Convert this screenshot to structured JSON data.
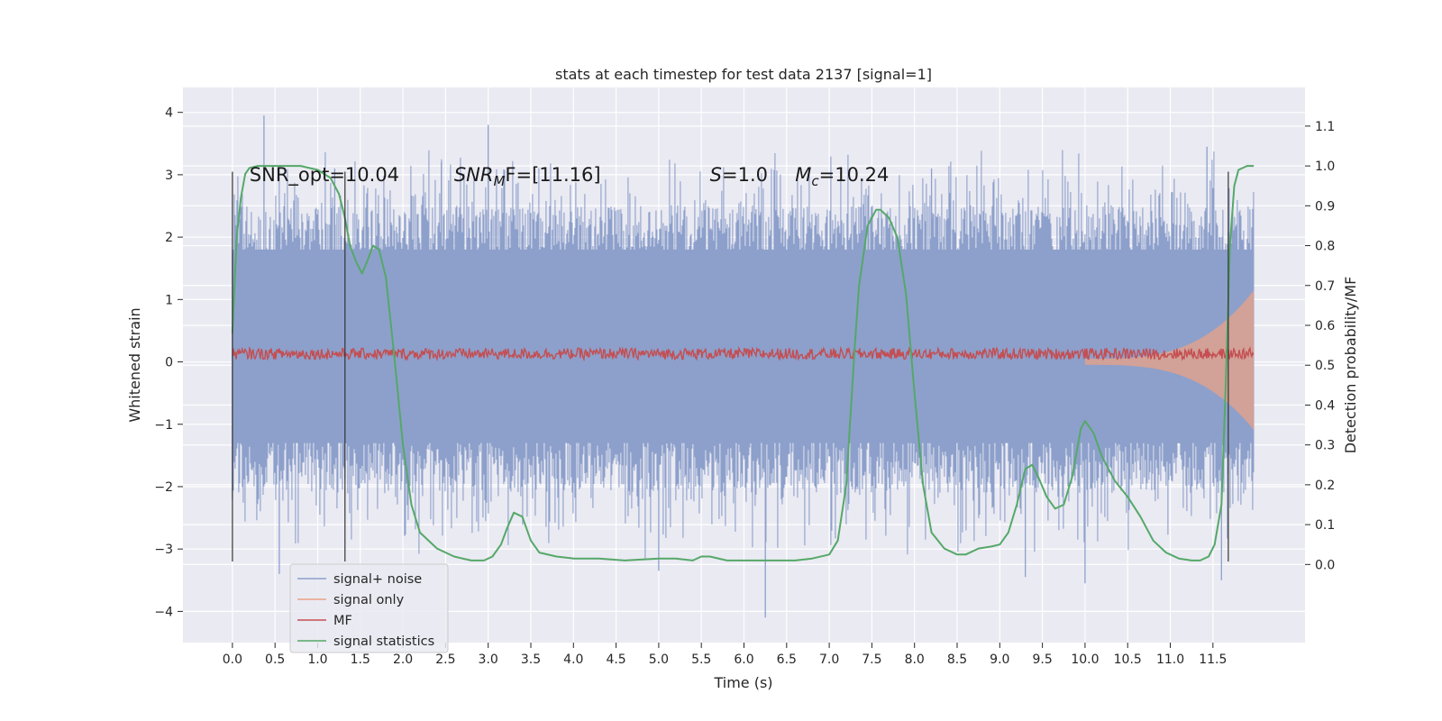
{
  "chart_data": {
    "type": "line",
    "title": "stats at each timestep for test data 2137 [signal=1]",
    "xlabel": "Time (s)",
    "ylabel": "Whitened strain",
    "y2label": "Detection probability/MF",
    "xlim": [
      -0.58,
      12.58
    ],
    "ylim": [
      -4.5,
      4.4
    ],
    "y2lim": [
      -0.196,
      1.197
    ],
    "x_ticks": [
      "0.0",
      "0.5",
      "1.0",
      "1.5",
      "2.0",
      "2.5",
      "3.0",
      "3.5",
      "4.0",
      "4.5",
      "5.0",
      "5.5",
      "6.0",
      "6.5",
      "7.0",
      "7.5",
      "8.0",
      "8.5",
      "9.0",
      "9.5",
      "10.0",
      "10.5",
      "11.0",
      "11.5"
    ],
    "x_tick_values": [
      0,
      0.5,
      1,
      1.5,
      2,
      2.5,
      3,
      3.5,
      4,
      4.5,
      5,
      5.5,
      6,
      6.5,
      7,
      7.5,
      8,
      8.5,
      9,
      9.5,
      10,
      10.5,
      11,
      11.5
    ],
    "y_ticks": [
      "−4",
      "−3",
      "−2",
      "−1",
      "0",
      "1",
      "2",
      "3",
      "4"
    ],
    "y_tick_values": [
      -4,
      -3,
      -2,
      -1,
      0,
      1,
      2,
      3,
      4
    ],
    "y2_ticks": [
      "0.0",
      "0.1",
      "0.2",
      "0.3",
      "0.4",
      "0.5",
      "0.6",
      "0.7",
      "0.8",
      "0.9",
      "1.0",
      "1.1"
    ],
    "y2_tick_values": [
      0,
      0.1,
      0.2,
      0.3,
      0.4,
      0.5,
      0.6,
      0.7,
      0.8,
      0.9,
      1.0,
      1.1
    ],
    "grid": true,
    "legend_position": "lower-left",
    "annotations": [
      {
        "text": "SNR_opt=10.04",
        "x": 0.2,
        "y": 3.0
      },
      {
        "text_parts": [
          [
            "SNR",
            "italic"
          ],
          [
            "M",
            "italic-sub"
          ],
          [
            "F=[11.16]",
            "normal"
          ]
        ],
        "x": 2.6,
        "y": 3.0
      },
      {
        "text_parts": [
          [
            "S",
            "italic"
          ],
          [
            "=1.0",
            "normal"
          ]
        ],
        "x": 5.6,
        "y": 3.0
      },
      {
        "text_parts": [
          [
            "M",
            "italic"
          ],
          [
            "c",
            "italic-sub"
          ],
          [
            "=10.24",
            "normal"
          ]
        ],
        "x": 6.6,
        "y": 3.0
      }
    ],
    "vlines": [
      {
        "x": 0.0,
        "y_range": [
          -3.2,
          3.05
        ]
      },
      {
        "x": 1.32,
        "y_range": [
          -3.2,
          3.05
        ]
      },
      {
        "x": 11.68,
        "y_range": [
          -3.2,
          3.05
        ]
      }
    ],
    "series": [
      {
        "name": "signal+ noise",
        "color": "#8da0cb",
        "axis": "left",
        "x_range": [
          0,
          11.98
        ],
        "envelope_core": [
          -1.3,
          1.8
        ],
        "peak_max": 3.95,
        "peak_min": -4.1
      },
      {
        "name": "signal only",
        "color": "#e9a185",
        "axis": "left",
        "x_range": [
          10.0,
          11.98
        ],
        "chirp_amplitude_end": 1.1
      },
      {
        "name": "MF",
        "color": "#c44e52",
        "axis": "left",
        "x_range": [
          0,
          11.98
        ],
        "baseline": 0.13,
        "noise_amp": 0.09
      },
      {
        "name": "signal statistics",
        "color": "#55a868",
        "axis": "right",
        "x": [
          0.0,
          0.05,
          0.1,
          0.15,
          0.2,
          0.3,
          0.5,
          0.8,
          1.0,
          1.15,
          1.25,
          1.32,
          1.38,
          1.45,
          1.52,
          1.58,
          1.65,
          1.72,
          1.8,
          1.9,
          2.0,
          2.1,
          2.2,
          2.4,
          2.6,
          2.8,
          2.95,
          3.05,
          3.15,
          3.22,
          3.3,
          3.4,
          3.5,
          3.6,
          3.8,
          4.0,
          4.3,
          4.6,
          5.0,
          5.2,
          5.4,
          5.5,
          5.6,
          5.8,
          6.0,
          6.3,
          6.6,
          6.8,
          7.0,
          7.1,
          7.2,
          7.3,
          7.35,
          7.45,
          7.55,
          7.6,
          7.7,
          7.8,
          7.9,
          8.0,
          8.1,
          8.2,
          8.35,
          8.5,
          8.6,
          8.75,
          8.9,
          9.0,
          9.1,
          9.2,
          9.3,
          9.38,
          9.45,
          9.55,
          9.65,
          9.75,
          9.85,
          9.95,
          10.0,
          10.1,
          10.2,
          10.35,
          10.5,
          10.65,
          10.8,
          10.95,
          11.1,
          11.25,
          11.35,
          11.45,
          11.52,
          11.6,
          11.65,
          11.7,
          11.75,
          11.8,
          11.9,
          11.98
        ],
        "y": [
          0.58,
          0.82,
          0.92,
          0.98,
          0.995,
          1.0,
          1.0,
          1.0,
          0.99,
          0.97,
          0.93,
          0.87,
          0.8,
          0.76,
          0.73,
          0.76,
          0.8,
          0.79,
          0.72,
          0.52,
          0.3,
          0.15,
          0.08,
          0.04,
          0.02,
          0.01,
          0.01,
          0.02,
          0.05,
          0.09,
          0.13,
          0.12,
          0.06,
          0.03,
          0.02,
          0.015,
          0.015,
          0.01,
          0.015,
          0.015,
          0.01,
          0.02,
          0.02,
          0.01,
          0.01,
          0.01,
          0.01,
          0.015,
          0.025,
          0.06,
          0.2,
          0.55,
          0.7,
          0.85,
          0.89,
          0.89,
          0.87,
          0.82,
          0.68,
          0.43,
          0.2,
          0.08,
          0.04,
          0.025,
          0.025,
          0.04,
          0.045,
          0.05,
          0.08,
          0.15,
          0.24,
          0.25,
          0.22,
          0.17,
          0.14,
          0.15,
          0.22,
          0.34,
          0.36,
          0.33,
          0.27,
          0.21,
          0.17,
          0.12,
          0.06,
          0.03,
          0.015,
          0.01,
          0.01,
          0.02,
          0.05,
          0.15,
          0.45,
          0.8,
          0.95,
          0.99,
          1.0,
          1.0
        ]
      }
    ]
  }
}
